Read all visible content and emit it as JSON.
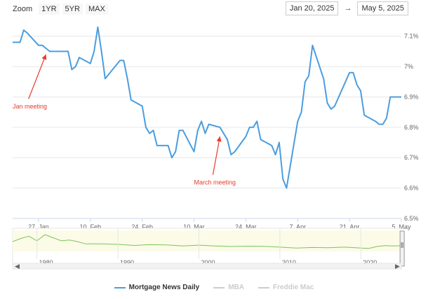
{
  "toolbar": {
    "zoom_label": "Zoom",
    "ranges": [
      "1YR",
      "5YR",
      "MAX"
    ],
    "from_date": "Jan 20, 2025",
    "to_date": "May 5, 2025",
    "arrow": "→"
  },
  "colors": {
    "series": "#4a9de0",
    "annotation": "#e53b2c",
    "inactive": "#cccccc",
    "navigator": "#7cc45c"
  },
  "chart_data": {
    "type": "line",
    "x_start": "2025-01-20",
    "x_end": "2025-05-05",
    "y_range": [
      6.5,
      7.15
    ],
    "x_ticks": [
      {
        "date": "2025-01-27",
        "label": "27. Jan"
      },
      {
        "date": "2025-02-10",
        "label": "10. Feb"
      },
      {
        "date": "2025-02-24",
        "label": "24. Feb"
      },
      {
        "date": "2025-03-10",
        "label": "10. Mar"
      },
      {
        "date": "2025-03-24",
        "label": "24. Mar"
      },
      {
        "date": "2025-04-07",
        "label": "7. Apr"
      },
      {
        "date": "2025-04-21",
        "label": "21. Apr"
      },
      {
        "date": "2025-05-05",
        "label": "5. May"
      }
    ],
    "y_ticks": [
      {
        "value": 7.1,
        "label": "7.1%"
      },
      {
        "value": 7.0,
        "label": "7%"
      },
      {
        "value": 6.9,
        "label": "6.9%"
      },
      {
        "value": 6.8,
        "label": "6.8%"
      },
      {
        "value": 6.7,
        "label": "6.7%"
      },
      {
        "value": 6.6,
        "label": "6.6%"
      },
      {
        "value": 6.5,
        "label": "6.5%"
      }
    ],
    "series": [
      {
        "name": "Mortgage News Daily",
        "points": [
          [
            "2025-01-20",
            7.08
          ],
          [
            "2025-01-21",
            7.08
          ],
          [
            "2025-01-22",
            7.08
          ],
          [
            "2025-01-23",
            7.12
          ],
          [
            "2025-01-24",
            7.11
          ],
          [
            "2025-01-27",
            7.07
          ],
          [
            "2025-01-28",
            7.07
          ],
          [
            "2025-01-29",
            7.06
          ],
          [
            "2025-01-30",
            7.05
          ],
          [
            "2025-01-31",
            7.05
          ],
          [
            "2025-02-03",
            7.05
          ],
          [
            "2025-02-04",
            7.05
          ],
          [
            "2025-02-05",
            6.99
          ],
          [
            "2025-02-06",
            7.0
          ],
          [
            "2025-02-07",
            7.03
          ],
          [
            "2025-02-10",
            7.01
          ],
          [
            "2025-02-11",
            7.05
          ],
          [
            "2025-02-12",
            7.13
          ],
          [
            "2025-02-13",
            7.05
          ],
          [
            "2025-02-14",
            6.96
          ],
          [
            "2025-02-18",
            7.02
          ],
          [
            "2025-02-19",
            7.02
          ],
          [
            "2025-02-20",
            6.96
          ],
          [
            "2025-02-21",
            6.89
          ],
          [
            "2025-02-24",
            6.87
          ],
          [
            "2025-02-25",
            6.8
          ],
          [
            "2025-02-26",
            6.78
          ],
          [
            "2025-02-27",
            6.79
          ],
          [
            "2025-02-28",
            6.74
          ],
          [
            "2025-03-03",
            6.74
          ],
          [
            "2025-03-04",
            6.7
          ],
          [
            "2025-03-05",
            6.72
          ],
          [
            "2025-03-06",
            6.79
          ],
          [
            "2025-03-07",
            6.79
          ],
          [
            "2025-03-10",
            6.72
          ],
          [
            "2025-03-11",
            6.79
          ],
          [
            "2025-03-12",
            6.82
          ],
          [
            "2025-03-13",
            6.78
          ],
          [
            "2025-03-14",
            6.81
          ],
          [
            "2025-03-17",
            6.8
          ],
          [
            "2025-03-18",
            6.78
          ],
          [
            "2025-03-19",
            6.76
          ],
          [
            "2025-03-20",
            6.71
          ],
          [
            "2025-03-21",
            6.72
          ],
          [
            "2025-03-24",
            6.77
          ],
          [
            "2025-03-25",
            6.8
          ],
          [
            "2025-03-26",
            6.8
          ],
          [
            "2025-03-27",
            6.82
          ],
          [
            "2025-03-28",
            6.76
          ],
          [
            "2025-03-31",
            6.74
          ],
          [
            "2025-04-01",
            6.71
          ],
          [
            "2025-04-02",
            6.75
          ],
          [
            "2025-04-03",
            6.63
          ],
          [
            "2025-04-04",
            6.6
          ],
          [
            "2025-04-07",
            6.82
          ],
          [
            "2025-04-08",
            6.85
          ],
          [
            "2025-04-09",
            6.95
          ],
          [
            "2025-04-10",
            6.97
          ],
          [
            "2025-04-11",
            7.07
          ],
          [
            "2025-04-14",
            6.96
          ],
          [
            "2025-04-15",
            6.88
          ],
          [
            "2025-04-16",
            6.86
          ],
          [
            "2025-04-17",
            6.87
          ],
          [
            "2025-04-21",
            6.98
          ],
          [
            "2025-04-22",
            6.98
          ],
          [
            "2025-04-23",
            6.94
          ],
          [
            "2025-04-24",
            6.92
          ],
          [
            "2025-04-25",
            6.84
          ],
          [
            "2025-04-28",
            6.82
          ],
          [
            "2025-04-29",
            6.81
          ],
          [
            "2025-04-30",
            6.81
          ],
          [
            "2025-05-01",
            6.83
          ],
          [
            "2025-05-02",
            6.9
          ],
          [
            "2025-05-05",
            6.9
          ]
        ]
      }
    ],
    "annotations": [
      {
        "text": "Jan meeting",
        "label_date": "2025-01-20",
        "label_value": 6.88,
        "target_date": "2025-01-29",
        "target_value": 7.04
      },
      {
        "text": "March meeting",
        "label_date": "2025-03-10",
        "label_value": 6.63,
        "target_date": "2025-03-17",
        "target_value": 6.77
      }
    ],
    "navigator": {
      "ticks": [
        "1980",
        "1990",
        "2000",
        "2010",
        "2020"
      ]
    }
  },
  "legend": [
    {
      "name": "Mortgage News Daily",
      "active": true
    },
    {
      "name": "MBA",
      "active": false
    },
    {
      "name": "Freddie Mac",
      "active": false
    }
  ]
}
